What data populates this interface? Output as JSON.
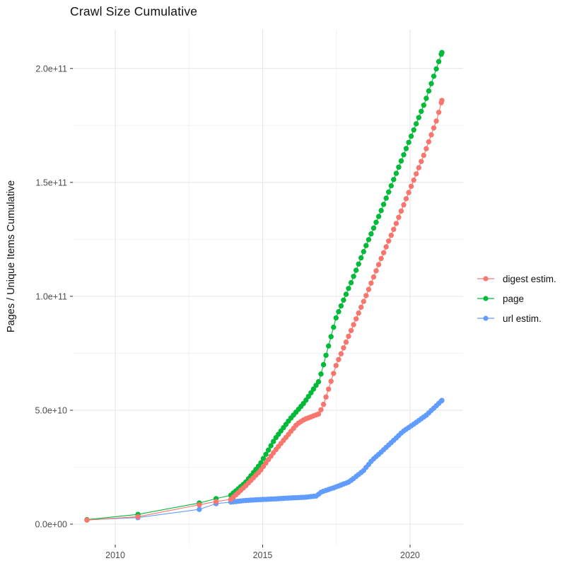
{
  "page": {
    "background": "#FFFFFF"
  },
  "chart_data": {
    "type": "scatter",
    "title": "Crawl Size Cumulative",
    "xlabel": "",
    "ylabel": "Pages / Unique Items Cumulative",
    "grid": "on",
    "legend_position": "right",
    "xlim": [
      2008.56,
      2021.8
    ],
    "ylim": [
      -9000000000.0,
      217000000000.0
    ],
    "x_ticks": [
      {
        "value": 2010,
        "label": "2010"
      },
      {
        "value": 2015,
        "label": "2015"
      },
      {
        "value": 2020,
        "label": "2020"
      }
    ],
    "x_minor": [
      2012.5,
      2017.5
    ],
    "y_ticks": [
      {
        "value": 0.0,
        "label": "0.0e+00"
      },
      {
        "value": 50000000000.0,
        "label": "5.0e+10"
      },
      {
        "value": 100000000000.0,
        "label": "1.0e+11"
      },
      {
        "value": 150000000000.0,
        "label": "1.5e+11"
      },
      {
        "value": 200000000000.0,
        "label": "2.0e+11"
      }
    ],
    "y_minor": [
      25000000000.0,
      75000000000.0,
      125000000000.0,
      175000000000.0
    ],
    "point_style": {
      "radius": 3.7,
      "line_width": 1.1,
      "dense_from": 2013.92,
      "dense_step": 0.085
    },
    "series": [
      {
        "name": "digest estim.",
        "color": "#F8766D",
        "points": [
          [
            2009.04,
            1800000000.0
          ],
          [
            2010.77,
            3300000000.0
          ],
          [
            2012.85,
            8500000000.0
          ],
          [
            2013.42,
            9900000000.0
          ],
          [
            2013.92,
            10900000000.0
          ],
          [
            2014.42,
            16800000000.0
          ],
          [
            2014.92,
            23500000000.0
          ],
          [
            2015.42,
            32300000000.0
          ],
          [
            2015.92,
            40100000000.0
          ],
          [
            2016.17,
            44000000000.0
          ],
          [
            2016.42,
            46000000000.0
          ],
          [
            2016.92,
            48500000000.0
          ],
          [
            2017.08,
            53000000000.0
          ],
          [
            2017.5,
            70000000000.0
          ],
          [
            2018.0,
            85000000000.0
          ],
          [
            2018.5,
            100000000000.0
          ],
          [
            2019.0,
            116000000000.0
          ],
          [
            2019.5,
            131000000000.0
          ],
          [
            2020.0,
            147000000000.0
          ],
          [
            2020.5,
            163000000000.0
          ],
          [
            2020.92,
            178000000000.0
          ],
          [
            2021.08,
            186000000000.0
          ]
        ]
      },
      {
        "name": "page",
        "color": "#00BA38",
        "points": [
          [
            2009.04,
            2000000000.0
          ],
          [
            2010.77,
            4300000000.0
          ],
          [
            2012.85,
            9300000000.0
          ],
          [
            2013.42,
            11200000000.0
          ],
          [
            2013.92,
            12700000000.0
          ],
          [
            2014.42,
            18300000000.0
          ],
          [
            2014.92,
            26500000000.0
          ],
          [
            2015.42,
            37500000000.0
          ],
          [
            2015.92,
            46000000000.0
          ],
          [
            2016.42,
            53500000000.0
          ],
          [
            2016.92,
            63000000000.0
          ],
          [
            2017.5,
            91000000000.0
          ],
          [
            2018.0,
            106000000000.0
          ],
          [
            2018.5,
            122000000000.0
          ],
          [
            2019.0,
            137000000000.0
          ],
          [
            2019.5,
            153000000000.0
          ],
          [
            2020.0,
            169000000000.0
          ],
          [
            2020.5,
            185000000000.0
          ],
          [
            2021.08,
            207000000000.0
          ]
        ]
      },
      {
        "name": "url estim.",
        "color": "#619CFF",
        "points": [
          [
            2009.04,
            1900000000.0
          ],
          [
            2010.77,
            2900000000.0
          ],
          [
            2012.85,
            6500000000.0
          ],
          [
            2013.42,
            9000000000.0
          ],
          [
            2013.92,
            9700000000.0
          ],
          [
            2014.42,
            10400000000.0
          ],
          [
            2014.92,
            10800000000.0
          ],
          [
            2015.42,
            11100000000.0
          ],
          [
            2015.92,
            11500000000.0
          ],
          [
            2016.42,
            11800000000.0
          ],
          [
            2016.83,
            12400000000.0
          ],
          [
            2017.0,
            14200000000.0
          ],
          [
            2017.42,
            16000000000.0
          ],
          [
            2017.92,
            18500000000.0
          ],
          [
            2018.08,
            20000000000.0
          ],
          [
            2018.42,
            23500000000.0
          ],
          [
            2018.73,
            28300000000.0
          ],
          [
            2019.0,
            31400000000.0
          ],
          [
            2019.42,
            36500000000.0
          ],
          [
            2019.76,
            40700000000.0
          ],
          [
            2020.08,
            43500000000.0
          ],
          [
            2020.55,
            47800000000.0
          ],
          [
            2021.08,
            54300000000.0
          ]
        ]
      }
    ]
  }
}
